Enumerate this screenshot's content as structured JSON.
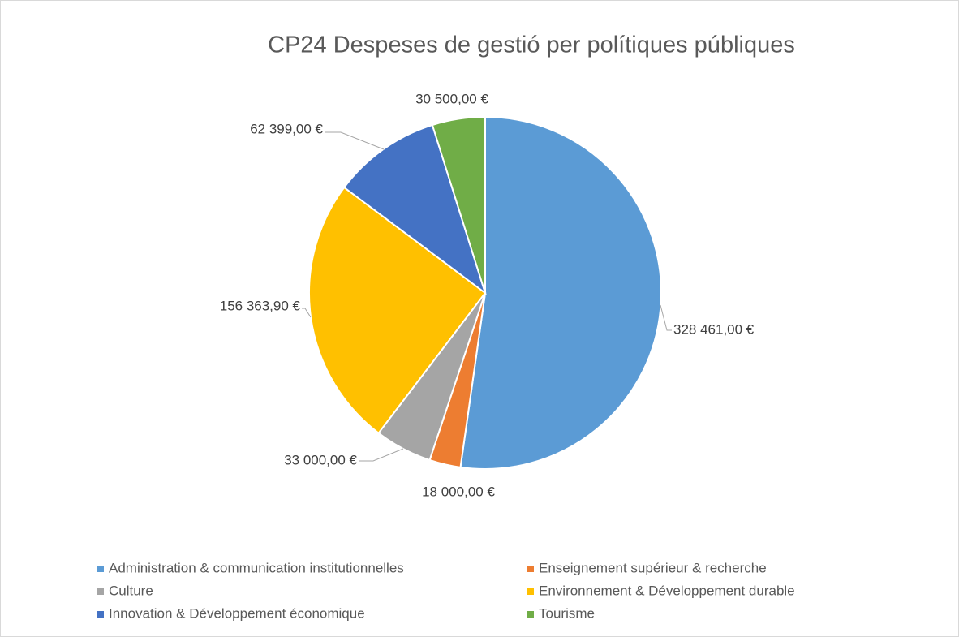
{
  "chart_data": {
    "type": "pie",
    "title": "CP24 Despeses de gestió per polítiques públiques",
    "categories": [
      "Administration & communication institutionnelles",
      "Enseignement supérieur & recherche",
      "Culture",
      "Environnement & Développement durable",
      "Innovation & Développement économique",
      "Tourisme"
    ],
    "values": [
      328461,
      18000,
      33000,
      156363.9,
      62399,
      30500
    ],
    "value_labels": [
      "328 461,00 €",
      "18 000,00 €",
      "33 000,00 €",
      "156 363,90 €",
      "62 399,00 €",
      "30 500,00 €"
    ],
    "colors": [
      "#5b9bd5",
      "#ed7d31",
      "#a5a5a5",
      "#ffc000",
      "#4472c4",
      "#70ad47"
    ],
    "legend": "bottom"
  }
}
